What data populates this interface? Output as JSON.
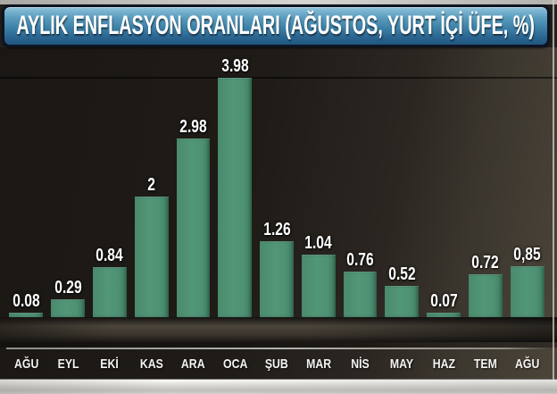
{
  "banner": {
    "title": "AYLIK ENFLASYON ORANLARI (AĞUSTOS, YURT İÇİ ÜFE, %)"
  },
  "chart_data": {
    "type": "bar",
    "title": "AYLIK ENFLASYON ORANLARI (AĞUSTOS, YURT İÇİ ÜFE, %)",
    "categories": [
      "AĞU",
      "EYL",
      "EKİ",
      "KAS",
      "ARA",
      "OCA",
      "ŞUB",
      "MAR",
      "NİS",
      "MAY",
      "HAZ",
      "TEM",
      "AĞU"
    ],
    "values": [
      0.08,
      0.29,
      0.84,
      2,
      2.98,
      3.98,
      1.26,
      1.04,
      0.76,
      0.52,
      0.07,
      0.72,
      0.85
    ],
    "value_labels": [
      "0.08",
      "0.29",
      "0.84",
      "2",
      "2.98",
      "3.98",
      "1.26",
      "1.04",
      "0.76",
      "0.52",
      "0.07",
      "0.72",
      "0,85"
    ],
    "xlabel": "",
    "ylabel": "",
    "ylim": [
      0,
      4.49
    ],
    "grid_lines": [
      4.0
    ],
    "legend": false,
    "bar_color": "#4e9173",
    "value_label_color": "#ffffff",
    "month_label_color": "#f4f3f1",
    "background_left": "#1b1714",
    "background_right": "#4b4539",
    "banner_top_color": "#8fc2da",
    "banner_bottom_color": "#1f577f"
  }
}
